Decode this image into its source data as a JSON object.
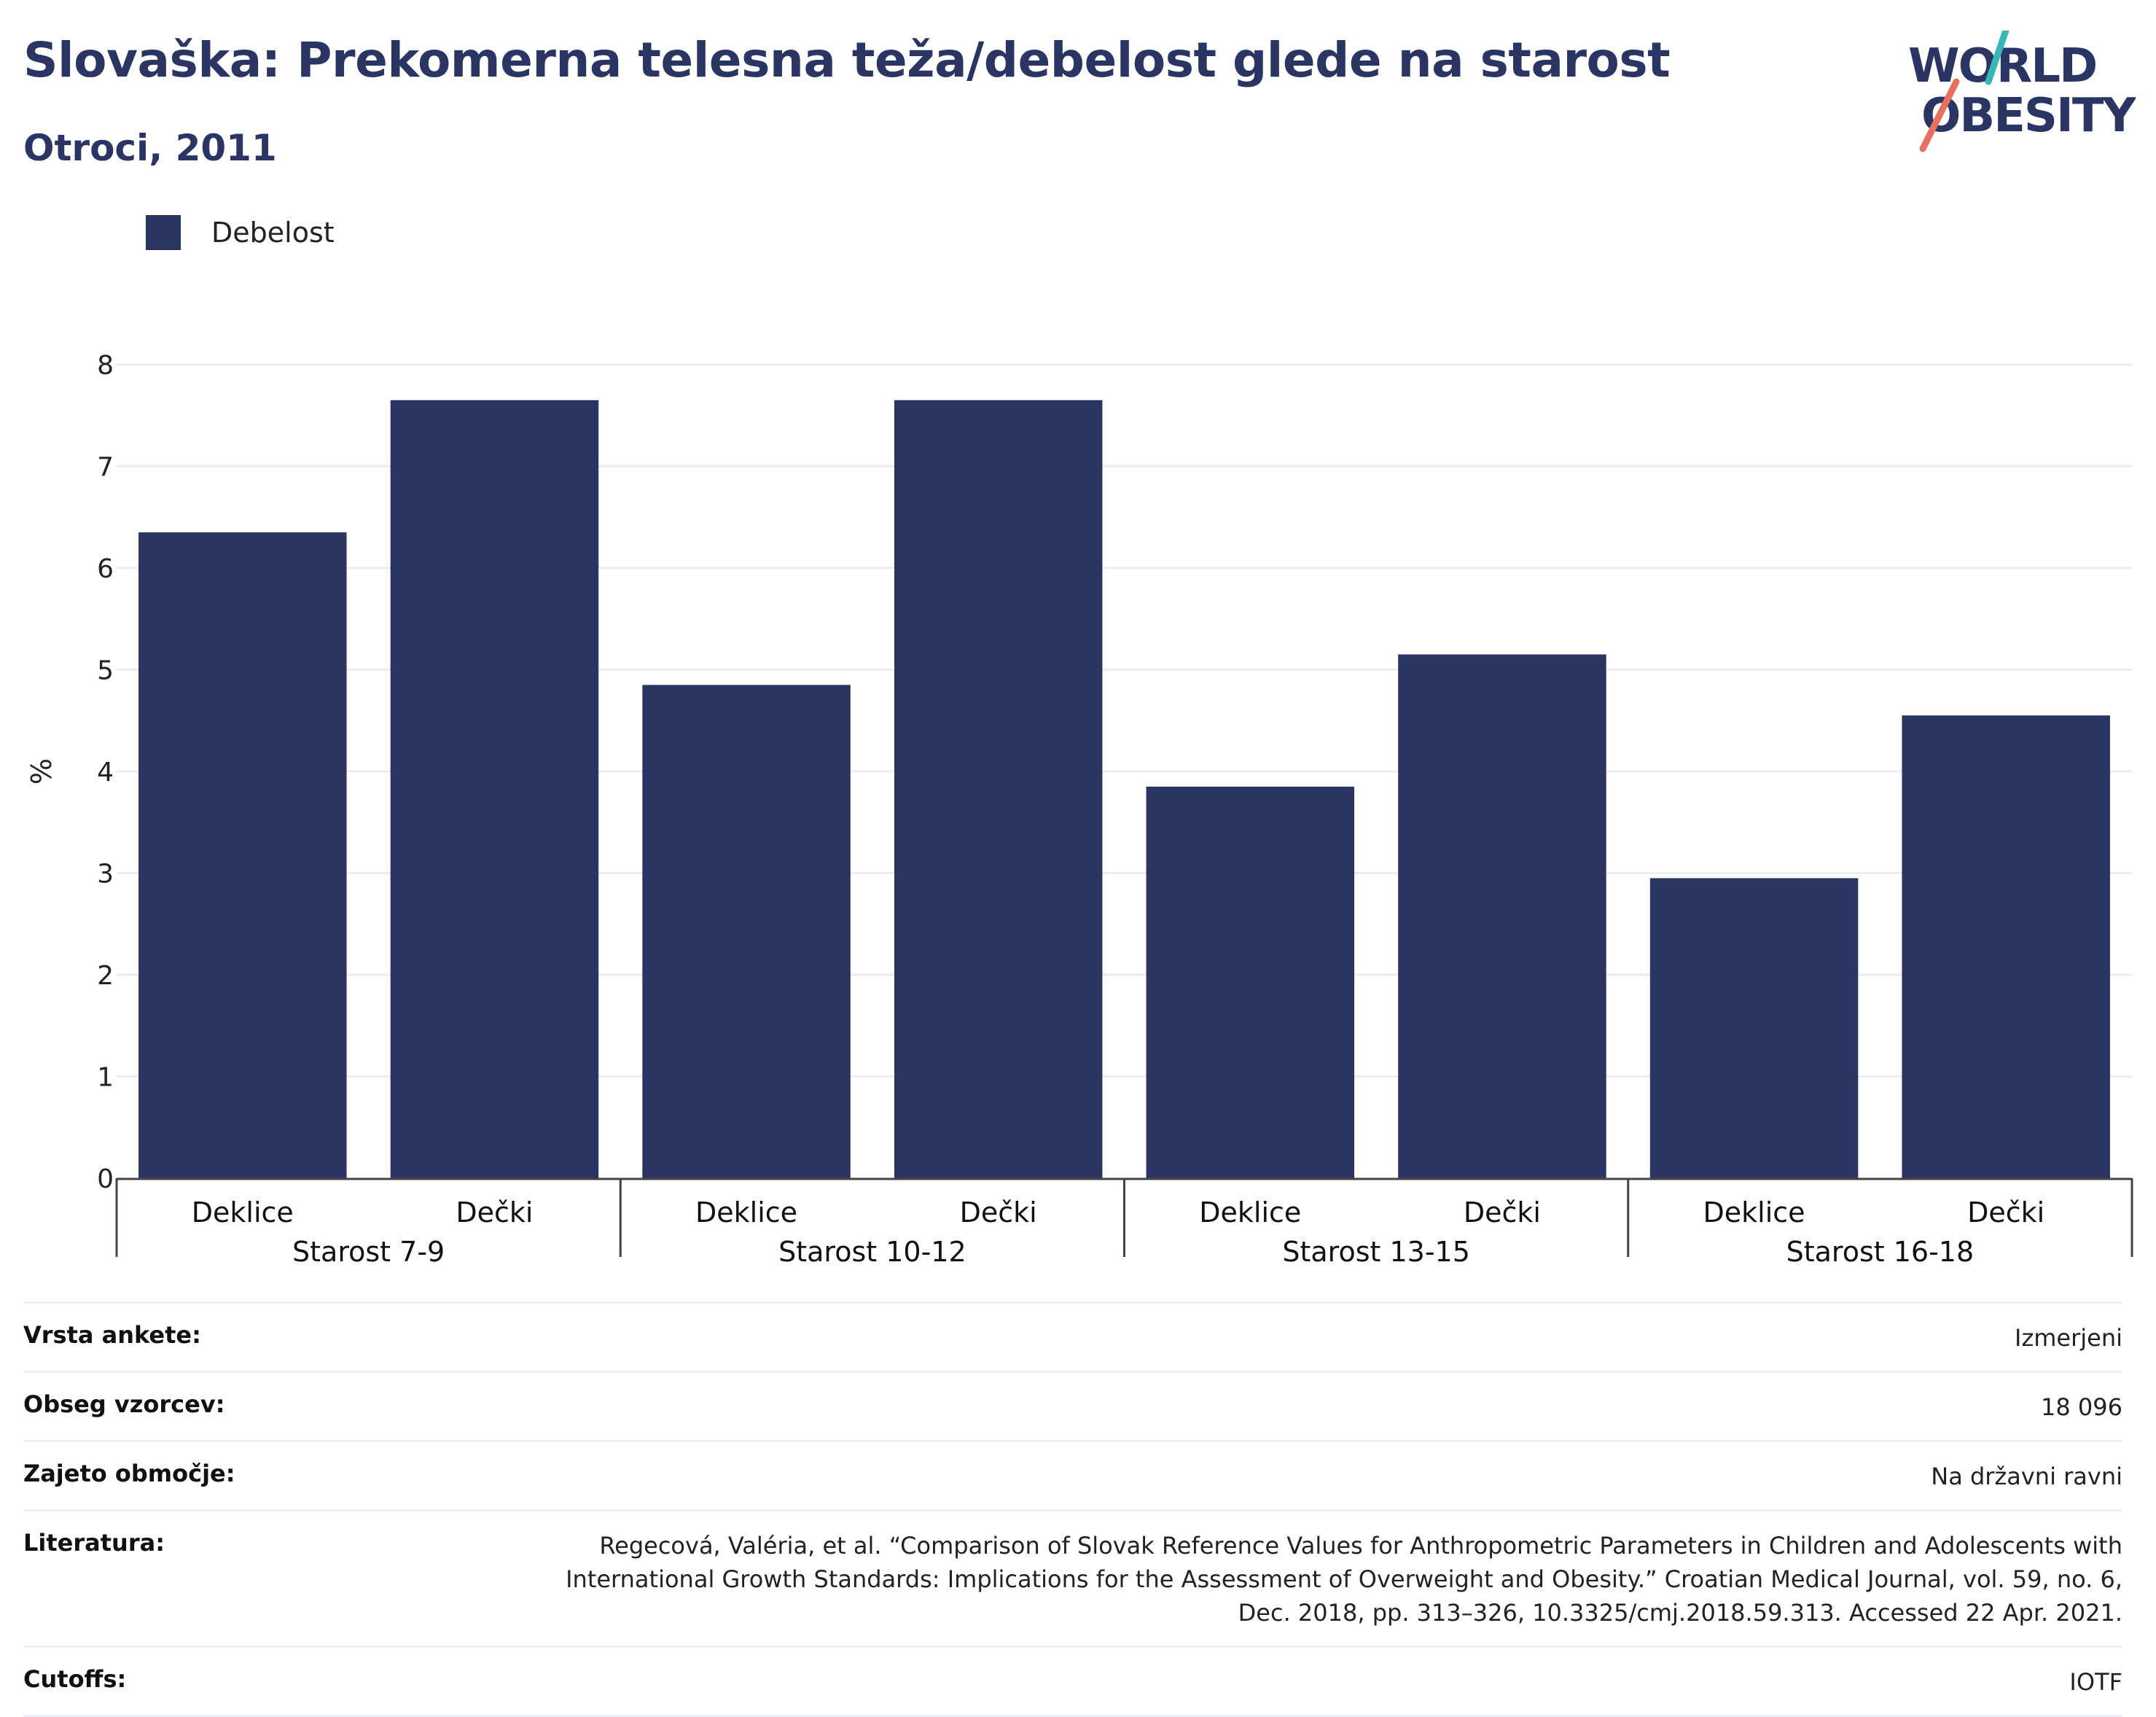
{
  "header": {
    "title": "Slovaška: Prekomerna telesna teža/debelost glede na starost",
    "subtitle": "Otroci, 2011"
  },
  "logo": {
    "line1": "WORLD",
    "line2": "OBESITY",
    "colors": {
      "text": "#2a3563",
      "teal": "#3ab7b4",
      "coral": "#e8705e"
    }
  },
  "legend": {
    "label": "Debelost",
    "color": "#2a3563"
  },
  "chart_data": {
    "type": "bar",
    "ylabel": "%",
    "ylim": [
      0,
      8
    ],
    "yticks": [
      "0",
      "1",
      "2",
      "3",
      "4",
      "5",
      "6",
      "7",
      "8"
    ],
    "grid": true,
    "groups": [
      {
        "label": "Starost 7-9",
        "bars": [
          {
            "label": "Deklice",
            "value": 6.35
          },
          {
            "label": "Dečki",
            "value": 7.65
          }
        ]
      },
      {
        "label": "Starost 10-12",
        "bars": [
          {
            "label": "Deklice",
            "value": 4.85
          },
          {
            "label": "Dečki",
            "value": 7.65
          }
        ]
      },
      {
        "label": "Starost 13-15",
        "bars": [
          {
            "label": "Deklice",
            "value": 3.85
          },
          {
            "label": "Dečki",
            "value": 5.15
          }
        ]
      },
      {
        "label": "Starost 16-18",
        "bars": [
          {
            "label": "Deklice",
            "value": 2.95
          },
          {
            "label": "Dečki",
            "value": 4.55
          }
        ]
      }
    ],
    "series": [
      {
        "name": "Debelost",
        "color": "#2a3563"
      }
    ]
  },
  "info": {
    "survey_type": {
      "label": "Vrsta ankete:",
      "value": "Izmerjeni"
    },
    "sample_size": {
      "label": "Obseg vzorcev:",
      "value": "18 096"
    },
    "coverage": {
      "label": "Zajeto območje:",
      "value": "Na državni ravni"
    },
    "literature": {
      "label": "Literatura:",
      "lines": [
        "Regecová, Valéria, et al. “Comparison of Slovak Reference Values for Anthropometric Parameters in Children and Adolescents with",
        "International Growth Standards: Implications for the Assessment of Overweight and Obesity.” Croatian Medical Journal, vol. 59, no. 6,",
        "Dec. 2018, pp. 313–326, 10.3325/cmj.2018.59.313. Accessed 22 Apr. 2021."
      ]
    },
    "cutoffs": {
      "label": "Cutoffs:",
      "value": "IOTF"
    }
  }
}
